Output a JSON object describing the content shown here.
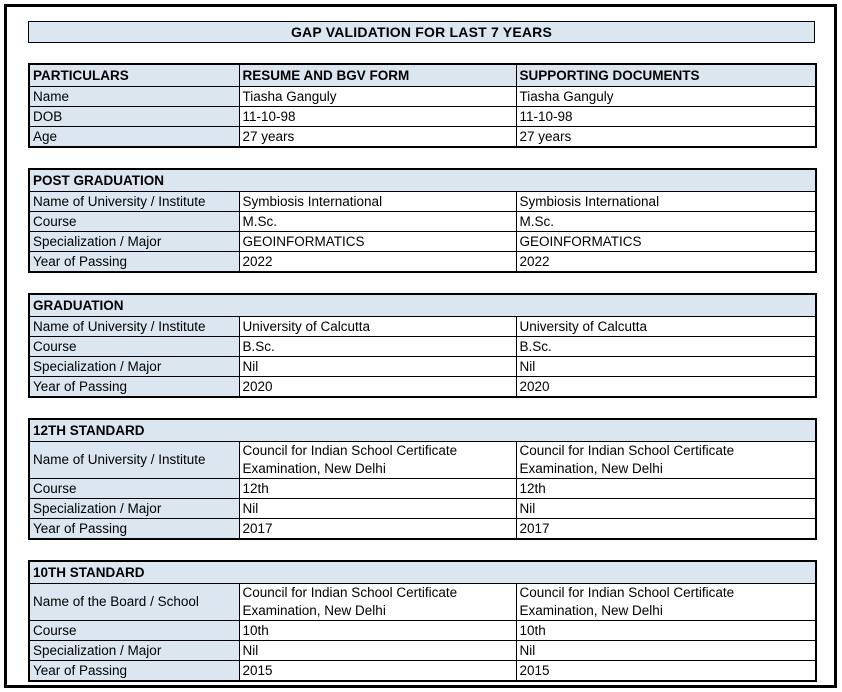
{
  "title": "GAP VALIDATION FOR LAST 7 YEARS",
  "colors": {
    "header_bg": "#dce6f1",
    "border": "#000000",
    "page_bg": "#ffffff",
    "text": "#000000"
  },
  "main_table": {
    "headers": [
      "PARTICULARS",
      "RESUME AND BGV FORM",
      "SUPPORTING DOCUMENTS"
    ],
    "rows": [
      [
        "Name",
        "Tiasha Ganguly",
        "Tiasha Ganguly"
      ],
      [
        "DOB",
        "11-10-98",
        "11-10-98"
      ],
      [
        "Age",
        "27 years",
        "27 years"
      ]
    ]
  },
  "sections": [
    {
      "title": "POST GRADUATION",
      "rows": [
        [
          "Name of University / Institute",
          "Symbiosis International",
          "Symbiosis International"
        ],
        [
          "Course",
          "M.Sc.",
          "M.Sc."
        ],
        [
          "Specialization / Major",
          "GEOINFORMATICS",
          "GEOINFORMATICS"
        ],
        [
          "Year of Passing",
          "2022",
          "2022"
        ]
      ]
    },
    {
      "title": "GRADUATION",
      "rows": [
        [
          "Name of University / Institute",
          "University of Calcutta",
          "University of Calcutta"
        ],
        [
          "Course",
          "B.Sc.",
          "B.Sc."
        ],
        [
          "Specialization / Major",
          "Nil",
          "Nil"
        ],
        [
          "Year of Passing",
          "2020",
          "2020"
        ]
      ]
    },
    {
      "title": "12TH STANDARD",
      "rows": [
        [
          "Name of University / Institute",
          "Council for Indian School Certificate Examination, New Delhi",
          "Council for Indian School Certificate Examination, New Delhi"
        ],
        [
          "Course",
          "12th",
          "12th"
        ],
        [
          "Specialization / Major",
          "Nil",
          "Nil"
        ],
        [
          "Year of Passing",
          "2017",
          "2017"
        ]
      ]
    },
    {
      "title": "10TH STANDARD",
      "rows": [
        [
          "Name of the Board / School",
          "Council for Indian School Certificate Examination, New Delhi",
          "Council for Indian School Certificate Examination, New Delhi"
        ],
        [
          "Course",
          "10th",
          "10th"
        ],
        [
          "Specialization / Major",
          "Nil",
          "Nil"
        ],
        [
          "Year of Passing",
          "2015",
          "2015"
        ]
      ]
    }
  ]
}
